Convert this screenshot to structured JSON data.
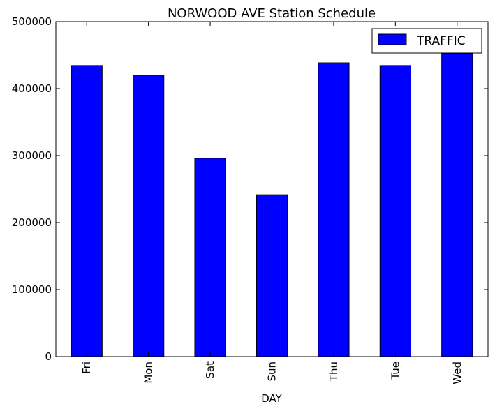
{
  "chart_data": {
    "type": "bar",
    "title": "NORWOOD AVE Station Schedule",
    "xlabel": "DAY",
    "ylabel": "",
    "categories": [
      "Fri",
      "Mon",
      "Sat",
      "Sun",
      "Thu",
      "Tue",
      "Wed"
    ],
    "series": [
      {
        "name": "TRAFFIC",
        "values": [
          434500,
          420000,
          296000,
          241500,
          438500,
          434500,
          452500
        ]
      }
    ],
    "ylim": [
      0,
      500000
    ],
    "yticks": [
      0,
      100000,
      200000,
      300000,
      400000,
      500000
    ],
    "ytick_labels": [
      "0",
      "100000",
      "200000",
      "300000",
      "400000",
      "500000"
    ],
    "grid": false,
    "legend_position": "top-right",
    "bar_color": "#0000ff",
    "edge_color": "#000000"
  }
}
